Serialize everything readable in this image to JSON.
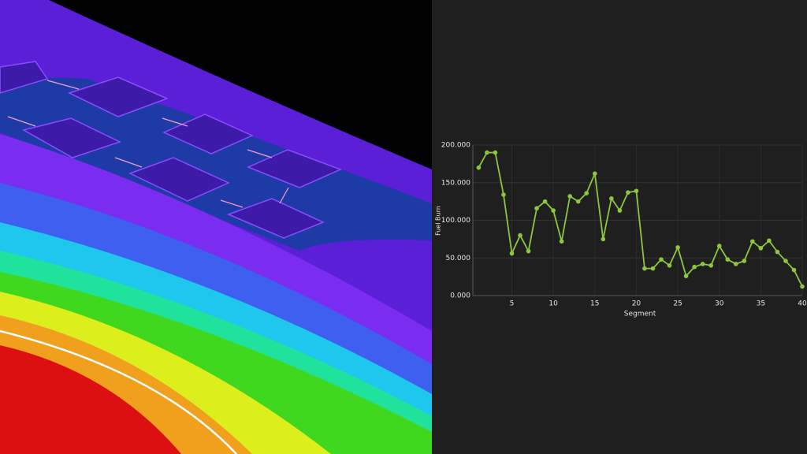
{
  "chart_data": {
    "type": "line",
    "x_label": "Segment",
    "y_label": "Fuel Burn",
    "x": [
      1,
      2,
      3,
      4,
      5,
      6,
      7,
      8,
      9,
      10,
      11,
      12,
      13,
      14,
      15,
      16,
      17,
      18,
      19,
      20,
      21,
      22,
      23,
      24,
      25,
      26,
      27,
      28,
      29,
      30,
      31,
      32,
      33,
      34,
      35,
      36,
      37,
      38,
      39,
      40
    ],
    "values": [
      170000,
      190000,
      190000,
      134000,
      56000,
      80000,
      59000,
      116000,
      125000,
      113000,
      72000,
      132000,
      125000,
      136000,
      162000,
      75000,
      129000,
      113000,
      137000,
      139000,
      36000,
      36000,
      48000,
      40000,
      64000,
      26000,
      38000,
      42000,
      40000,
      66000,
      48000,
      42000,
      46000,
      72000,
      63000,
      73000,
      58000,
      46000,
      34000,
      12000
    ],
    "color": "#8dc63f",
    "xlim": [
      0.3,
      40
    ],
    "ylim": [
      0,
      200000
    ],
    "xticks": [
      5,
      10,
      15,
      20,
      25,
      30,
      35,
      40
    ],
    "yticks": [
      {
        "value": 0,
        "label": "0.000"
      },
      {
        "value": 50000,
        "label": "50.000"
      },
      {
        "value": 100000,
        "label": "100.000"
      },
      {
        "value": 150000,
        "label": "150.000"
      },
      {
        "value": 200000,
        "label": "200.000"
      }
    ],
    "grid": true
  }
}
